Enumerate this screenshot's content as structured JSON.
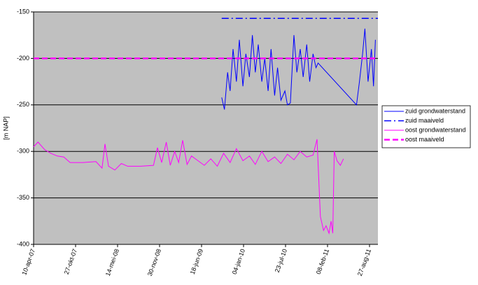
{
  "chart_data": {
    "type": "line",
    "ylabel": "[m NAP]",
    "xlim": [
      "2007-04-10",
      "2011-10-06"
    ],
    "xticks": [
      {
        "value": "2007-04-10",
        "label": "10-apr-07"
      },
      {
        "value": "2007-10-27",
        "label": "27-okt-07"
      },
      {
        "value": "2008-05-14",
        "label": "14-mei-08"
      },
      {
        "value": "2008-11-30",
        "label": "30-nov-08"
      },
      {
        "value": "2009-06-18",
        "label": "18-jun-09"
      },
      {
        "value": "2010-01-04",
        "label": "04-jan-10"
      },
      {
        "value": "2010-07-23",
        "label": "23-jul-10"
      },
      {
        "value": "2011-02-08",
        "label": "08-feb-11"
      },
      {
        "value": "2011-08-27",
        "label": "27-aug-11"
      }
    ],
    "ylim": [
      -400,
      -150
    ],
    "yticks": [
      -150,
      -200,
      -250,
      -300,
      -350,
      -400
    ],
    "grid": true,
    "background": "#c0c0c0",
    "legend": "right",
    "series": [
      {
        "name": "zuid grondwaterstand",
        "color": "#0000ff",
        "linestyle": "solid",
        "x": [
          "2009-09-22",
          "2009-10-05",
          "2009-10-20",
          "2009-11-01",
          "2009-11-15",
          "2009-12-01",
          "2009-12-15",
          "2010-01-01",
          "2010-01-15",
          "2010-02-01",
          "2010-02-15",
          "2010-03-01",
          "2010-03-15",
          "2010-04-01",
          "2010-04-15",
          "2010-05-01",
          "2010-05-15",
          "2010-06-01",
          "2010-06-15",
          "2010-07-01",
          "2010-07-20",
          "2010-08-01",
          "2010-08-15",
          "2010-09-01",
          "2010-09-15",
          "2010-10-01",
          "2010-10-15",
          "2010-11-01",
          "2010-11-15",
          "2010-12-01",
          "2010-12-15",
          "2010-12-25",
          "2011-06-26",
          "2011-07-10",
          "2011-07-25",
          "2011-08-05",
          "2011-08-20",
          "2011-09-05",
          "2011-09-15",
          "2011-09-24"
        ],
        "values": [
          -242,
          -255,
          -215,
          -235,
          -190,
          -225,
          -180,
          -230,
          -195,
          -220,
          -175,
          -215,
          -185,
          -225,
          -200,
          -235,
          -190,
          -240,
          -210,
          -245,
          -235,
          -250,
          -248,
          -175,
          -215,
          -190,
          -220,
          -185,
          -225,
          -195,
          -210,
          -205,
          -250,
          -225,
          -195,
          -168,
          -225,
          -190,
          -230,
          -180
        ]
      },
      {
        "name": "zuid maaiveld",
        "color": "#0000ff",
        "linestyle": "dashdot",
        "x": [
          "2009-09-22",
          "2011-10-06"
        ],
        "values": [
          -157,
          -157
        ]
      },
      {
        "name": "oost grondwaterstand",
        "color": "#ff00ff",
        "linestyle": "solid",
        "x": [
          "2007-04-10",
          "2007-05-01",
          "2007-06-01",
          "2007-07-01",
          "2007-08-01",
          "2007-09-01",
          "2007-10-01",
          "2007-12-01",
          "2008-02-01",
          "2008-03-01",
          "2008-03-15",
          "2008-04-01",
          "2008-05-01",
          "2008-06-01",
          "2008-07-01",
          "2008-09-01",
          "2008-11-01",
          "2008-11-20",
          "2008-12-10",
          "2009-01-01",
          "2009-01-20",
          "2009-02-10",
          "2009-03-01",
          "2009-03-20",
          "2009-04-10",
          "2009-05-01",
          "2009-06-01",
          "2009-07-01",
          "2009-08-01",
          "2009-09-01",
          "2009-10-01",
          "2009-11-01",
          "2009-12-01",
          "2010-01-01",
          "2010-02-01",
          "2010-03-01",
          "2010-04-01",
          "2010-05-01",
          "2010-06-01",
          "2010-07-01",
          "2010-08-01",
          "2010-09-01",
          "2010-10-01",
          "2010-11-01",
          "2010-12-01",
          "2010-12-20",
          "2011-01-05",
          "2011-01-20",
          "2011-02-01",
          "2011-02-15",
          "2011-02-25",
          "2011-03-05",
          "2011-03-12",
          "2011-03-25",
          "2011-04-10",
          "2011-04-25"
        ],
        "values": [
          -295,
          -290,
          -298,
          -302,
          -305,
          -306,
          -312,
          -312,
          -311,
          -318,
          -292,
          -316,
          -320,
          -313,
          -316,
          -316,
          -315,
          -296,
          -312,
          -290,
          -315,
          -300,
          -312,
          -288,
          -314,
          -305,
          -310,
          -315,
          -308,
          -316,
          -302,
          -312,
          -297,
          -310,
          -305,
          -314,
          -300,
          -311,
          -306,
          -313,
          -303,
          -309,
          -300,
          -306,
          -304,
          -287,
          -370,
          -385,
          -380,
          -388,
          -375,
          -388,
          -300,
          -310,
          -315,
          -308
        ]
      },
      {
        "name": "oost maaiveld",
        "color": "#ff00ff",
        "linestyle": "dash",
        "x": [
          "2007-04-10",
          "2011-10-06"
        ],
        "values": [
          -200,
          -200
        ]
      }
    ]
  }
}
